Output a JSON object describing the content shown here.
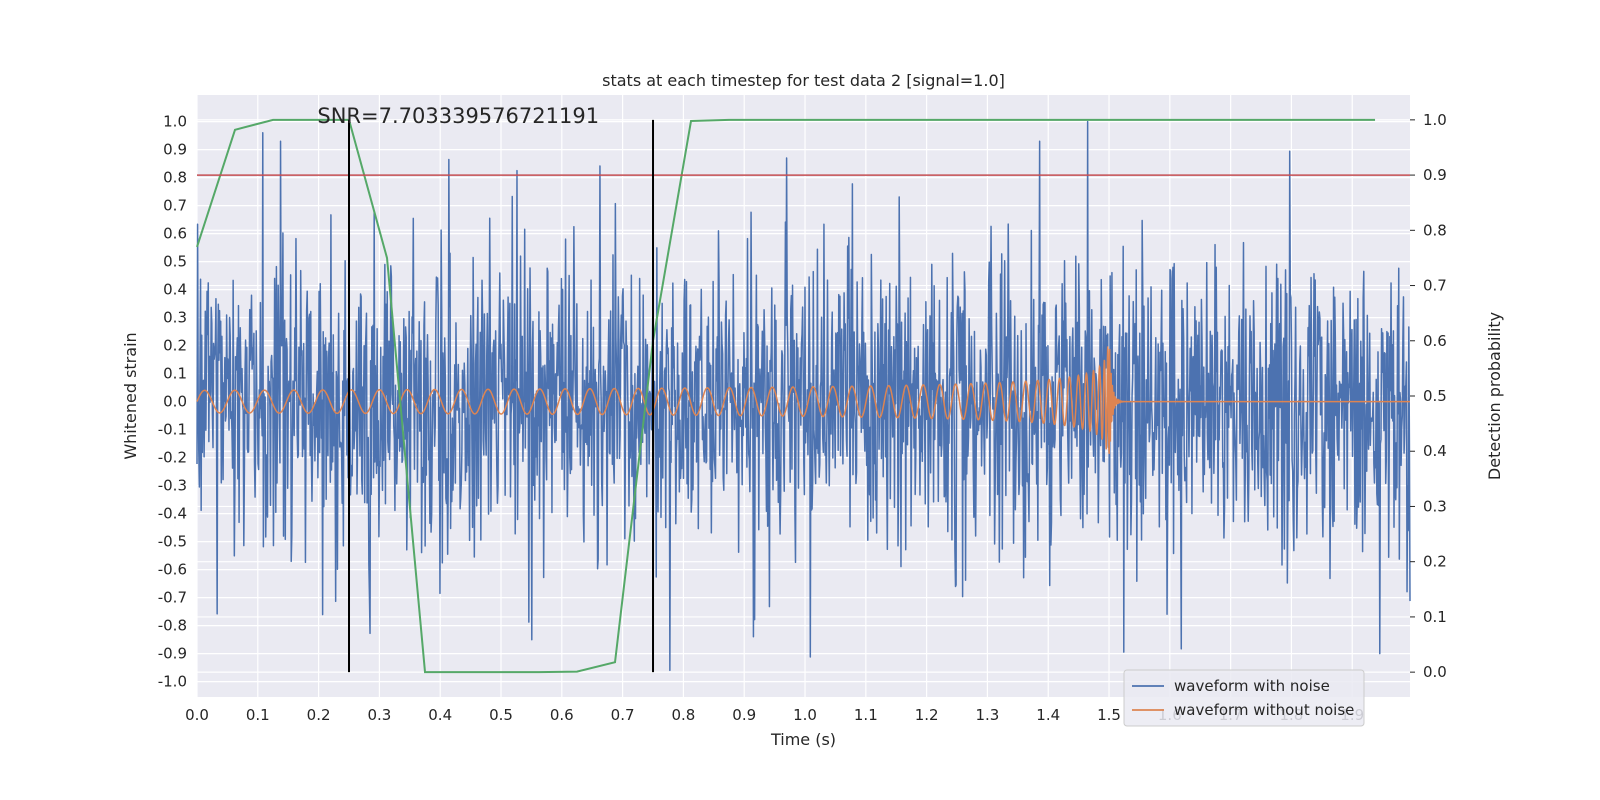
{
  "chart_data": {
    "type": "line",
    "title": "stats at each timestep for test data 2 [signal=1.0]",
    "xlabel": "Time (s)",
    "ylabel": "Whitened strain",
    "y2label": "Detection probability",
    "xlim": [
      0.0,
      1.995
    ],
    "ylim": [
      -1.055,
      1.095
    ],
    "y2lim": [
      -0.045,
      1.045
    ],
    "x_ticks": [
      0.0,
      0.1,
      0.2,
      0.3,
      0.4,
      0.5,
      0.6,
      0.7,
      0.8,
      0.9,
      1.0,
      1.1,
      1.2,
      1.3,
      1.4,
      1.5,
      1.6,
      1.7,
      1.8,
      1.9
    ],
    "y_ticks": [
      1.0,
      0.9,
      0.8,
      0.7,
      0.6,
      0.5,
      0.4,
      0.3,
      0.2,
      0.1,
      0.0,
      -0.1,
      -0.2,
      -0.3,
      -0.4,
      -0.5,
      -0.6,
      -0.7,
      -0.8,
      -0.9,
      -1.0
    ],
    "y2_ticks": [
      1.0,
      0.9,
      0.8,
      0.7,
      0.6,
      0.5,
      0.4,
      0.3,
      0.2,
      0.1,
      0.0
    ],
    "annotation": "SNR=7.703339576721191",
    "grid": true,
    "legend_position": "lower-right",
    "series": [
      {
        "name": "waveform with noise",
        "axis": "left",
        "color": "#4c72b0",
        "samples": 2048,
        "amplitude_range": [
          -0.96,
          1.0
        ],
        "peaks": [
          {
            "x": 0.108,
            "y": 0.96
          },
          {
            "x": 1.465,
            "y": 1.0
          },
          {
            "x": 0.97,
            "y": 0.87
          },
          {
            "x": 0.778,
            "y": -0.96
          },
          {
            "x": 1.945,
            "y": -0.9
          },
          {
            "x": 0.915,
            "y": -0.84
          }
        ]
      },
      {
        "name": "waveform without noise",
        "axis": "left",
        "color": "#dd8452",
        "chirp_start": 0.0,
        "merger_time": 1.5,
        "start_amplitude": 0.04,
        "peak_amplitude": 0.25
      },
      {
        "name": "detection probability",
        "axis": "right",
        "color": "#55a868",
        "x": [
          0.0,
          0.0625,
          0.125,
          0.1875,
          0.25,
          0.3125,
          0.375,
          0.4375,
          0.5,
          0.5625,
          0.625,
          0.6875,
          0.75,
          0.8125,
          0.875,
          0.9375,
          1.0,
          1.0625,
          1.125,
          1.1875,
          1.25,
          1.3125,
          1.375,
          1.4375,
          1.5,
          1.5625,
          1.625,
          1.6875,
          1.75,
          1.8125,
          1.875,
          1.9375
        ],
        "values": [
          0.77,
          0.982,
          1.0,
          1.0,
          1.0,
          0.75,
          0.0,
          0.0,
          0.0,
          0.0,
          0.001,
          0.018,
          0.6,
          0.998,
          1.0,
          1.0,
          1.0,
          1.0,
          1.0,
          1.0,
          1.0,
          1.0,
          1.0,
          1.0,
          1.0,
          1.0,
          1.0,
          1.0,
          1.0,
          1.0,
          1.0,
          1.0
        ]
      }
    ],
    "threshold_line": {
      "axis": "right",
      "value": 0.9,
      "color": "#c44e52"
    },
    "vertical_markers": {
      "x": [
        0.25,
        0.75
      ],
      "y2_range": [
        0.0,
        1.0
      ],
      "color": "#000000"
    }
  }
}
